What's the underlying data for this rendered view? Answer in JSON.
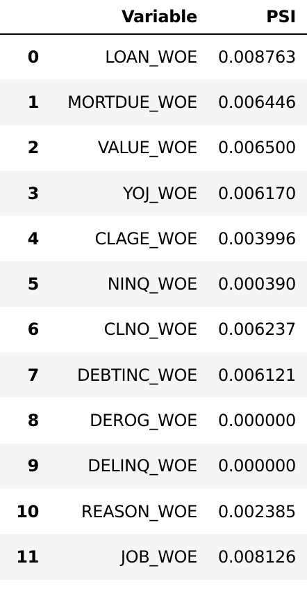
{
  "table": {
    "headers": {
      "index": "",
      "variable": "Variable",
      "psi": "PSI"
    },
    "rows": [
      {
        "index": "0",
        "variable": "LOAN_WOE",
        "psi": "0.008763"
      },
      {
        "index": "1",
        "variable": "MORTDUE_WOE",
        "psi": "0.006446"
      },
      {
        "index": "2",
        "variable": "VALUE_WOE",
        "psi": "0.006500"
      },
      {
        "index": "3",
        "variable": "YOJ_WOE",
        "psi": "0.006170"
      },
      {
        "index": "4",
        "variable": "CLAGE_WOE",
        "psi": "0.003996"
      },
      {
        "index": "5",
        "variable": "NINQ_WOE",
        "psi": "0.000390"
      },
      {
        "index": "6",
        "variable": "CLNO_WOE",
        "psi": "0.006237"
      },
      {
        "index": "7",
        "variable": "DEBTINC_WOE",
        "psi": "0.006121"
      },
      {
        "index": "8",
        "variable": "DEROG_WOE",
        "psi": "0.000000"
      },
      {
        "index": "9",
        "variable": "DELINQ_WOE",
        "psi": "0.000000"
      },
      {
        "index": "10",
        "variable": "REASON_WOE",
        "psi": "0.002385"
      },
      {
        "index": "11",
        "variable": "JOB_WOE",
        "psi": "0.008126"
      }
    ]
  },
  "colors": {
    "stripe": "#f5f5f5",
    "text": "#000000",
    "background": "#ffffff"
  }
}
